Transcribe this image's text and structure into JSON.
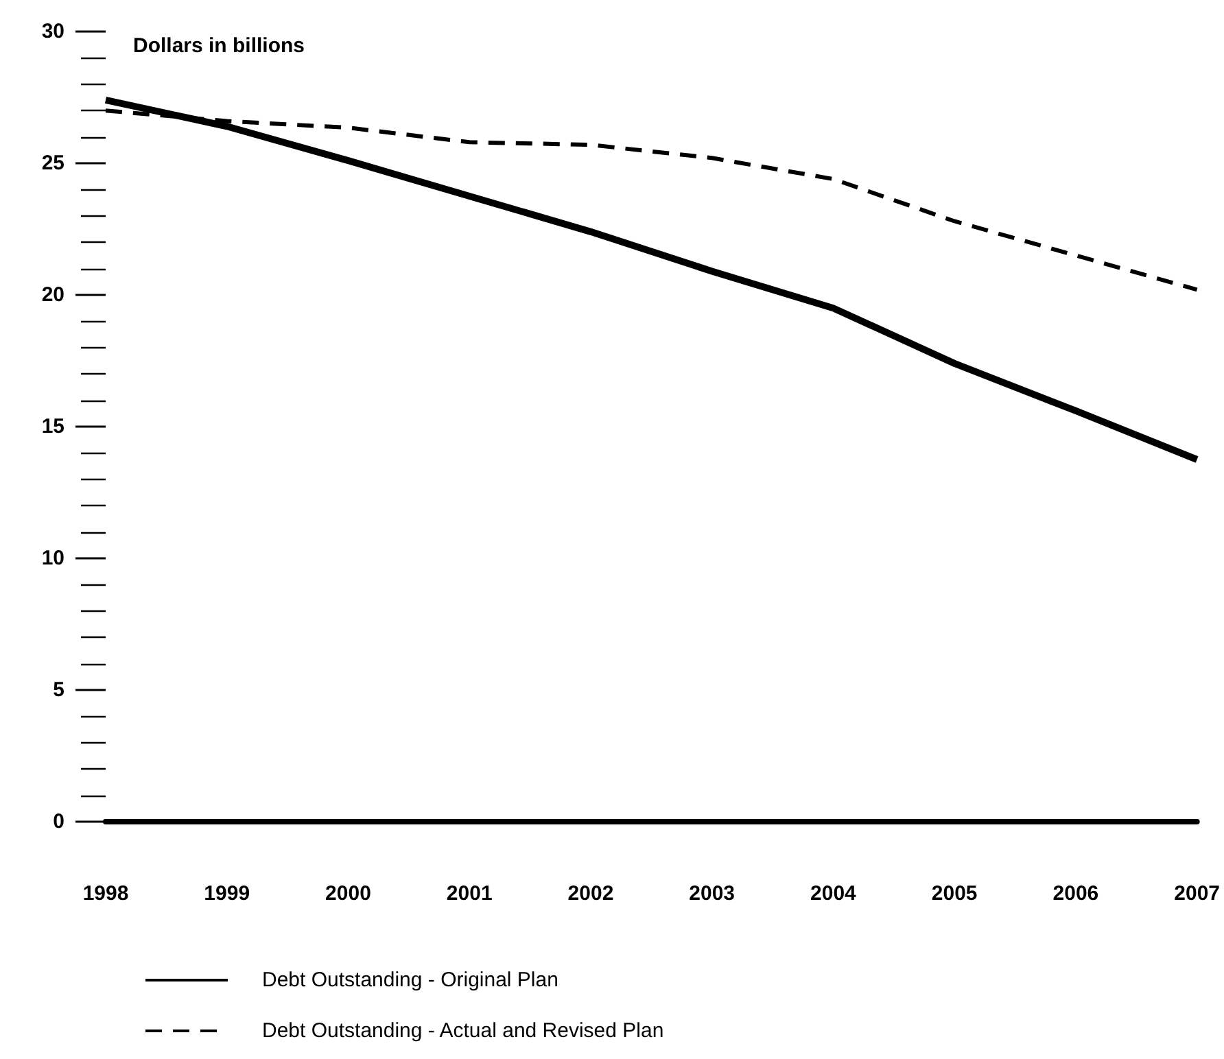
{
  "chart_data": {
    "type": "line",
    "ylabel": "Dollars in billions",
    "categories": [
      "1998",
      "1999",
      "2000",
      "2001",
      "2002",
      "2003",
      "2004",
      "2005",
      "2006",
      "2007"
    ],
    "series": [
      {
        "name": "Debt Outstanding - Original Plan",
        "color": "#000000",
        "line_style": "solid",
        "values": [
          27.4,
          26.4,
          25.1,
          23.75,
          22.4,
          20.9,
          19.5,
          17.4,
          15.6,
          13.75
        ]
      },
      {
        "name": "Debt Outstanding - Actual and Revised Plan",
        "color": "#000000",
        "line_style": "dashed",
        "values": [
          27.0,
          26.6,
          26.35,
          25.8,
          25.7,
          25.2,
          24.4,
          22.8,
          21.5,
          20.2
        ]
      }
    ],
    "ylim": [
      0,
      30
    ],
    "yticks": [
      0,
      5,
      10,
      15,
      20,
      25,
      30
    ],
    "grid": false,
    "marker": "none",
    "legend": "bottom"
  }
}
